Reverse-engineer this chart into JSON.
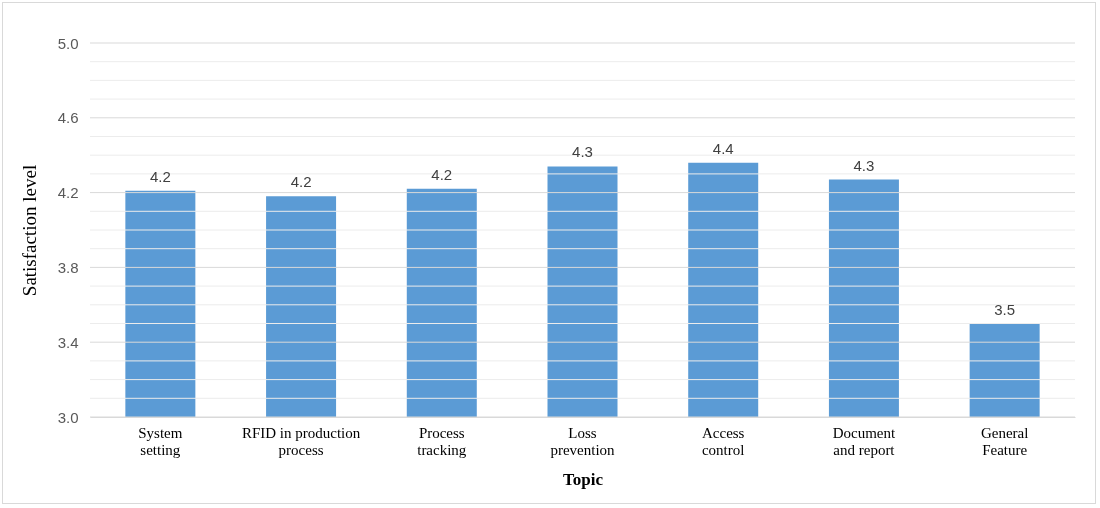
{
  "chart_data": {
    "type": "bar",
    "xlabel": "Topic",
    "ylabel": "Satisfaction level",
    "categories": [
      "System\nsetting",
      "RFID in production\nprocess",
      "Process\ntracking",
      "Loss\nprevention",
      "Access\ncontrol",
      "Document\nand report",
      "General\nFeature"
    ],
    "values": [
      4.21,
      4.18,
      4.22,
      4.34,
      4.36,
      4.27,
      3.5
    ],
    "value_labels": [
      "4.2",
      "4.2",
      "4.2",
      "4.3",
      "4.4",
      "4.3",
      "3.5"
    ],
    "color": "#5b9bd5",
    "ylim": [
      3.0,
      5.0
    ],
    "yticks": [
      {
        "value": 3.0,
        "label": "3.0"
      },
      {
        "value": 3.1,
        "label": null
      },
      {
        "value": 3.2,
        "label": null
      },
      {
        "value": 3.3,
        "label": null
      },
      {
        "value": 3.4,
        "label": "3.4"
      },
      {
        "value": 3.5,
        "label": null
      },
      {
        "value": 3.6,
        "label": null
      },
      {
        "value": 3.7,
        "label": null
      },
      {
        "value": 3.8,
        "label": "3.8"
      },
      {
        "value": 3.9,
        "label": null
      },
      {
        "value": 4.0,
        "label": null
      },
      {
        "value": 4.1,
        "label": null
      },
      {
        "value": 4.2,
        "label": "4.2"
      },
      {
        "value": 4.3,
        "label": null
      },
      {
        "value": 4.4,
        "label": null
      },
      {
        "value": 4.5,
        "label": null
      },
      {
        "value": 4.6,
        "label": "4.6"
      },
      {
        "value": 4.7,
        "label": null
      },
      {
        "value": 4.8,
        "label": null
      },
      {
        "value": 4.9,
        "label": null
      },
      {
        "value": 5.0,
        "label": "5.0"
      }
    ],
    "grid": "y"
  }
}
